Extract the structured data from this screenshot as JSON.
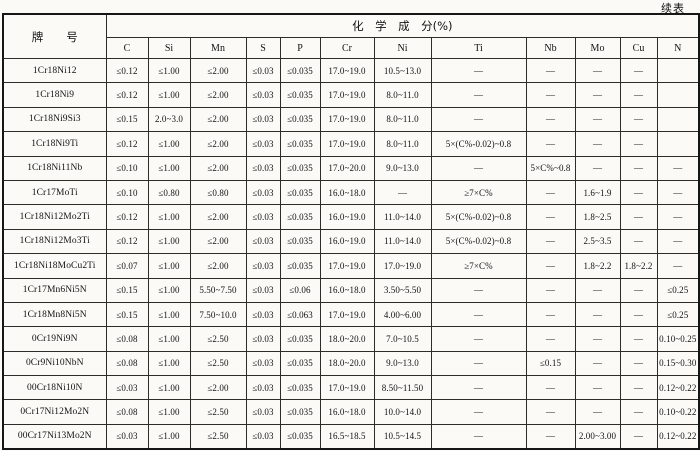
{
  "page": {
    "continued_label": "续表"
  },
  "table": {
    "grade_header": "牌　　号",
    "composition_header": "化　学　成　分(%)",
    "element_columns": [
      "C",
      "Si",
      "Mn",
      "S",
      "P",
      "Cr",
      "Ni",
      "Ti",
      "Nb",
      "Mo",
      "Cu",
      "N"
    ],
    "rows": [
      {
        "grade": "1Cr18Ni12",
        "values": [
          "≤0.12",
          "≤1.00",
          "≤2.00",
          "≤0.03",
          "≤0.035",
          "17.0~19.0",
          "10.5~13.0",
          "—",
          "—",
          "—",
          "—",
          ""
        ]
      },
      {
        "grade": "1Cr18Ni9",
        "values": [
          "≤0.12",
          "≤1.00",
          "≤2.00",
          "≤0.03",
          "≤0.035",
          "17.0~19.0",
          "8.0~11.0",
          "—",
          "—",
          "—",
          "—",
          ""
        ]
      },
      {
        "grade": "1Cr18Ni9Si3",
        "values": [
          "≤0.15",
          "2.0~3.0",
          "≤2.00",
          "≤0.03",
          "≤0.035",
          "17.0~19.0",
          "8.0~11.0",
          "—",
          "—",
          "—",
          "—",
          ""
        ]
      },
      {
        "grade": "1Cr18Ni9Ti",
        "values": [
          "≤0.12",
          "≤1.00",
          "≤2.00",
          "≤0.03",
          "≤0.035",
          "17.0~19.0",
          "8.0~11.0",
          "5×(C%-0.02)~0.8",
          "—",
          "—",
          "—",
          ""
        ]
      },
      {
        "grade": "1Cr18Ni11Nb",
        "values": [
          "≤0.10",
          "≤1.00",
          "≤2.00",
          "≤0.03",
          "≤0.035",
          "17.0~20.0",
          "9.0~13.0",
          "—",
          "5×C%~0.8",
          "—",
          "—",
          "—"
        ]
      },
      {
        "grade": "1Cr17MoTi",
        "values": [
          "≤0.10",
          "≤0.80",
          "≤0.80",
          "≤0.03",
          "≤0.035",
          "16.0~18.0",
          "—",
          "≥7×C%",
          "—",
          "1.6~1.9",
          "—",
          "—"
        ]
      },
      {
        "grade": "1Cr18Ni12Mo2Ti",
        "values": [
          "≤0.12",
          "≤1.00",
          "≤2.00",
          "≤0.03",
          "≤0.035",
          "16.0~19.0",
          "11.0~14.0",
          "5×(C%-0.02)~0.8",
          "—",
          "1.8~2.5",
          "—",
          "—"
        ]
      },
      {
        "grade": "1Cr18Ni12Mo3Ti",
        "values": [
          "≤0.12",
          "≤1.00",
          "≤2.00",
          "≤0.03",
          "≤0.035",
          "16.0~19.0",
          "11.0~14.0",
          "5×(C%-0.02)~0.8",
          "—",
          "2.5~3.5",
          "—",
          "—"
        ]
      },
      {
        "grade": "1Cr18Ni18MoCu2Ti",
        "values": [
          "≤0.07",
          "≤1.00",
          "≤2.00",
          "≤0.03",
          "≤0.035",
          "17.0~19.0",
          "17.0~19.0",
          "≥7×C%",
          "—",
          "1.8~2.2",
          "1.8~2.2",
          "—"
        ]
      },
      {
        "grade": "1Cr17Mn6Ni5N",
        "values": [
          "≤0.15",
          "≤1.00",
          "5.50~7.50",
          "≤0.03",
          "≤0.06",
          "16.0~18.0",
          "3.50~5.50",
          "—",
          "—",
          "—",
          "—",
          "≤0.25"
        ]
      },
      {
        "grade": "1Cr18Mn8Ni5N",
        "values": [
          "≤0.15",
          "≤1.00",
          "7.50~10.0",
          "≤0.03",
          "≤0.063",
          "17.0~19.0",
          "4.00~6.00",
          "—",
          "—",
          "—",
          "—",
          "≤0.25"
        ]
      },
      {
        "grade": "0Cr19Ni9N",
        "values": [
          "≤0.08",
          "≤1.00",
          "≤2.50",
          "≤0.03",
          "≤0.035",
          "18.0~20.0",
          "7.0~10.5",
          "—",
          "—",
          "—",
          "—",
          "0.10~0.25"
        ]
      },
      {
        "grade": "0Cr9Ni10NbN",
        "values": [
          "≤0.08",
          "≤1.00",
          "≤2.50",
          "≤0.03",
          "≤0.035",
          "18.0~20.0",
          "9.0~13.0",
          "—",
          "≤0.15",
          "—",
          "—",
          "0.15~0.30"
        ]
      },
      {
        "grade": "00Cr18Ni10N",
        "values": [
          "≤0.03",
          "≤1.00",
          "≤2.00",
          "≤0.03",
          "≤0.035",
          "17.0~19.0",
          "8.50~11.50",
          "—",
          "—",
          "—",
          "—",
          "0.12~0.22"
        ]
      },
      {
        "grade": "0Cr17Ni12Mo2N",
        "values": [
          "≤0.08",
          "≤1.00",
          "≤2.50",
          "≤0.03",
          "≤0.035",
          "16.0~18.0",
          "10.0~14.0",
          "—",
          "—",
          "—",
          "—",
          "0.10~0.22"
        ]
      },
      {
        "grade": "00Cr17Ni13Mo2N",
        "values": [
          "≤0.03",
          "≤1.00",
          "≤2.50",
          "≤0.03",
          "≤0.035",
          "16.5~18.5",
          "10.5~14.5",
          "—",
          "—",
          "2.00~3.00",
          "—",
          "0.12~0.22"
        ]
      }
    ]
  }
}
